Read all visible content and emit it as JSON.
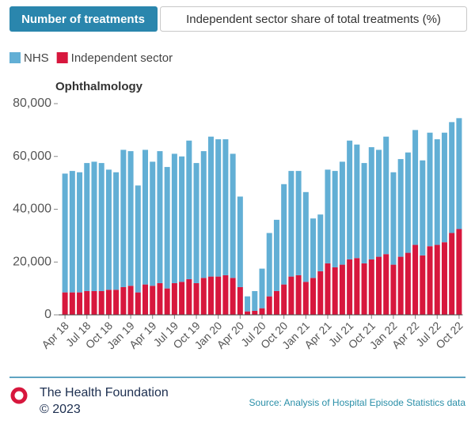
{
  "tabs": [
    "Number of treatments",
    "Independent sector share of total treatments (%)"
  ],
  "chart_data": {
    "type": "stacked_bar",
    "subtitle": "Ophthalmology",
    "categories": [
      "Apr 18",
      null,
      null,
      "Jul 18",
      null,
      null,
      "Oct 18",
      null,
      null,
      "Jan 19",
      null,
      null,
      "Apr 19",
      null,
      null,
      "Jul 19",
      null,
      null,
      "Oct 19",
      null,
      null,
      "Jan 20",
      null,
      null,
      "Apr 20",
      null,
      null,
      "Jul 20",
      null,
      null,
      "Oct 20",
      null,
      null,
      "Jan 21",
      null,
      null,
      "Apr 21",
      null,
      null,
      "Jul 21",
      null,
      null,
      "Oct 21",
      null,
      null,
      "Jan 22",
      null,
      null,
      "Apr 22",
      null,
      null,
      "Jul 22",
      null,
      null,
      "Oct 22"
    ],
    "series": [
      {
        "name": "NHS",
        "color": "#62afd5",
        "values": [
          45000,
          46000,
          45500,
          48500,
          49000,
          48500,
          45500,
          44500,
          52000,
          51000,
          40500,
          51000,
          47000,
          50000,
          46000,
          49000,
          47500,
          52500,
          45500,
          48000,
          53000,
          52000,
          51500,
          47000,
          34300,
          5700,
          7500,
          15000,
          24000,
          27000,
          38000,
          40000,
          39500,
          34000,
          22500,
          21500,
          35500,
          36500,
          39000,
          45000,
          43000,
          38000,
          42500,
          40500,
          44500,
          35000,
          37000,
          38000,
          43500,
          36000,
          43000,
          40000,
          41500,
          42000,
          42000
        ]
      },
      {
        "name": "Independent sector",
        "color": "#d7173d",
        "values": [
          8500,
          8500,
          8500,
          9000,
          9000,
          9000,
          9500,
          9500,
          10500,
          11000,
          8500,
          11500,
          11000,
          12000,
          10000,
          12000,
          12500,
          13500,
          12000,
          14000,
          14500,
          14500,
          15000,
          14000,
          10500,
          1300,
          1500,
          2500,
          7000,
          9000,
          11500,
          14500,
          15000,
          12500,
          14000,
          16500,
          19500,
          18000,
          19000,
          21000,
          21500,
          19500,
          21000,
          22000,
          23000,
          19000,
          22000,
          23500,
          26500,
          22500,
          26000,
          26500,
          27500,
          31000,
          32500
        ]
      }
    ],
    "ylim": [
      0,
      80000
    ],
    "yticks": [
      0,
      {
        "value": 20000,
        "label": "20,000"
      },
      {
        "value": 40000,
        "label": "40,000"
      },
      {
        "value": 60000,
        "label": "60,000"
      },
      {
        "value": 80000,
        "label": "80,000"
      }
    ],
    "grid": false
  },
  "footer": {
    "organisation": "The Health Foundation",
    "copyright": "© 2023",
    "source": "Source: Analysis of Hospital Episode Statistics data"
  }
}
